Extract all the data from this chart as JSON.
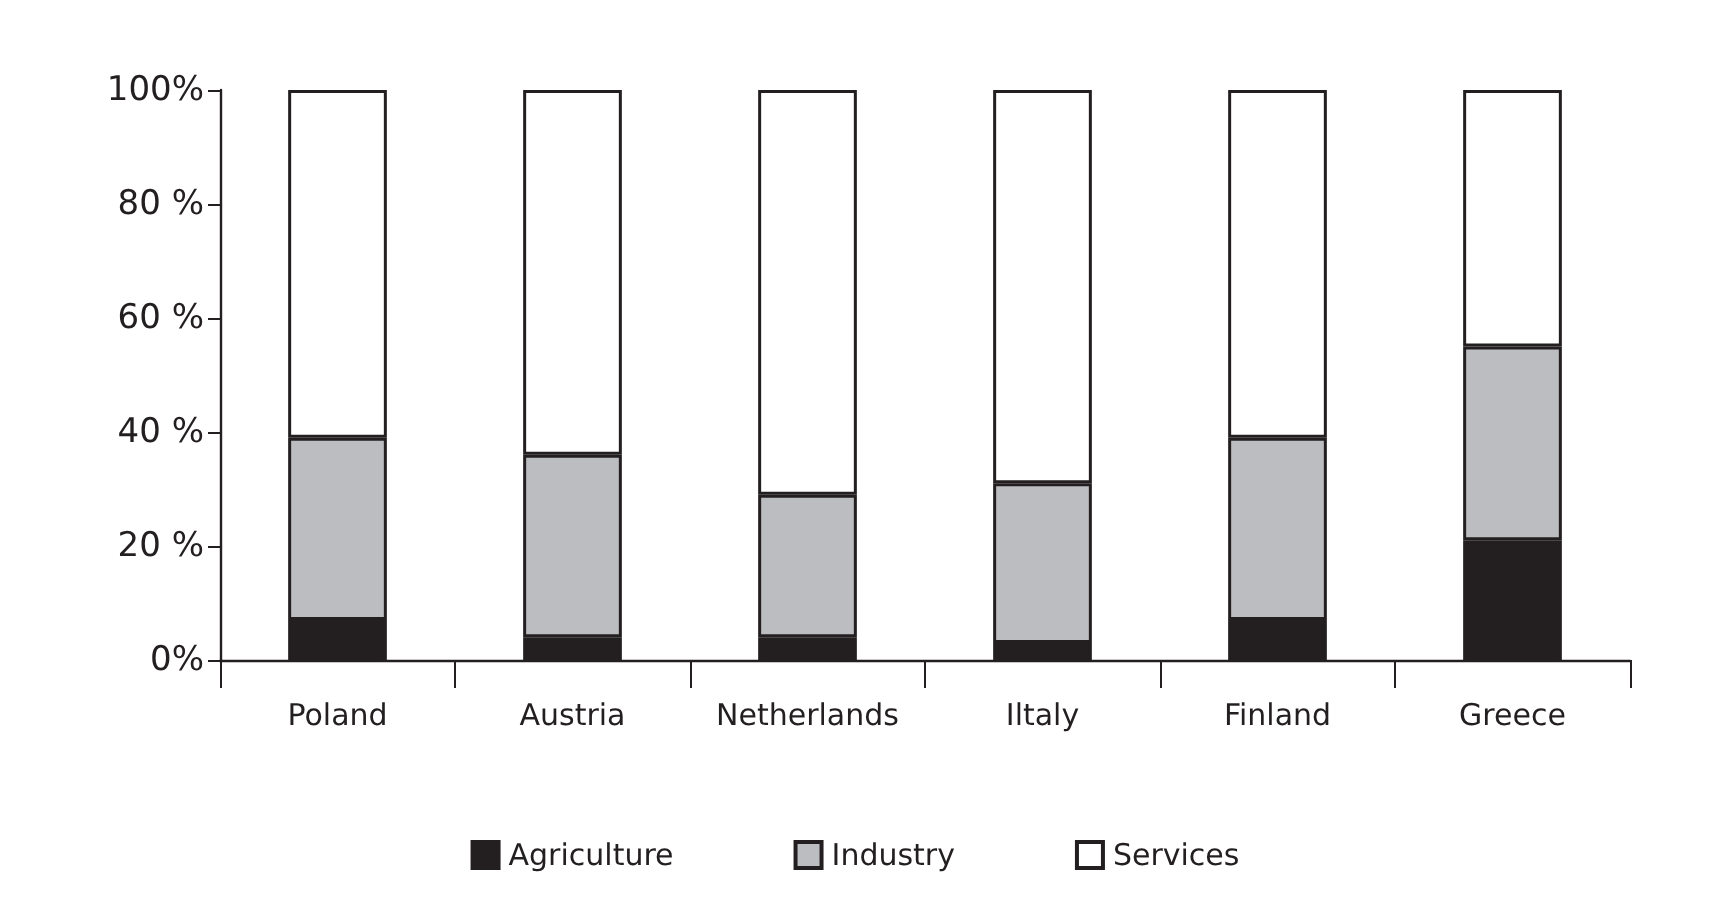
{
  "chart_data": {
    "type": "bar",
    "stacked": true,
    "categories": [
      "Poland",
      "Austria",
      "Netherlands",
      "Iltaly",
      "Finland",
      "Greece"
    ],
    "series": [
      {
        "name": "Agriculture",
        "color": "#231f20",
        "values": [
          7,
          4,
          4,
          3,
          7,
          21
        ]
      },
      {
        "name": "Industry",
        "color": "#bcbdc0",
        "values": [
          32,
          32,
          25,
          28,
          32,
          34
        ]
      },
      {
        "name": "Services",
        "color": "#ffffff",
        "values": [
          61,
          64,
          71,
          69,
          61,
          45
        ]
      }
    ],
    "ylim": [
      0,
      100
    ],
    "yticks": [
      {
        "value": 0,
        "label": "0%"
      },
      {
        "value": 20,
        "label": "20 %"
      },
      {
        "value": 40,
        "label": "40 %"
      },
      {
        "value": 60,
        "label": "60 %"
      },
      {
        "value": 80,
        "label": "80 %"
      },
      {
        "value": 100,
        "label": "100%"
      }
    ],
    "grid": false,
    "legend": "bottom"
  }
}
